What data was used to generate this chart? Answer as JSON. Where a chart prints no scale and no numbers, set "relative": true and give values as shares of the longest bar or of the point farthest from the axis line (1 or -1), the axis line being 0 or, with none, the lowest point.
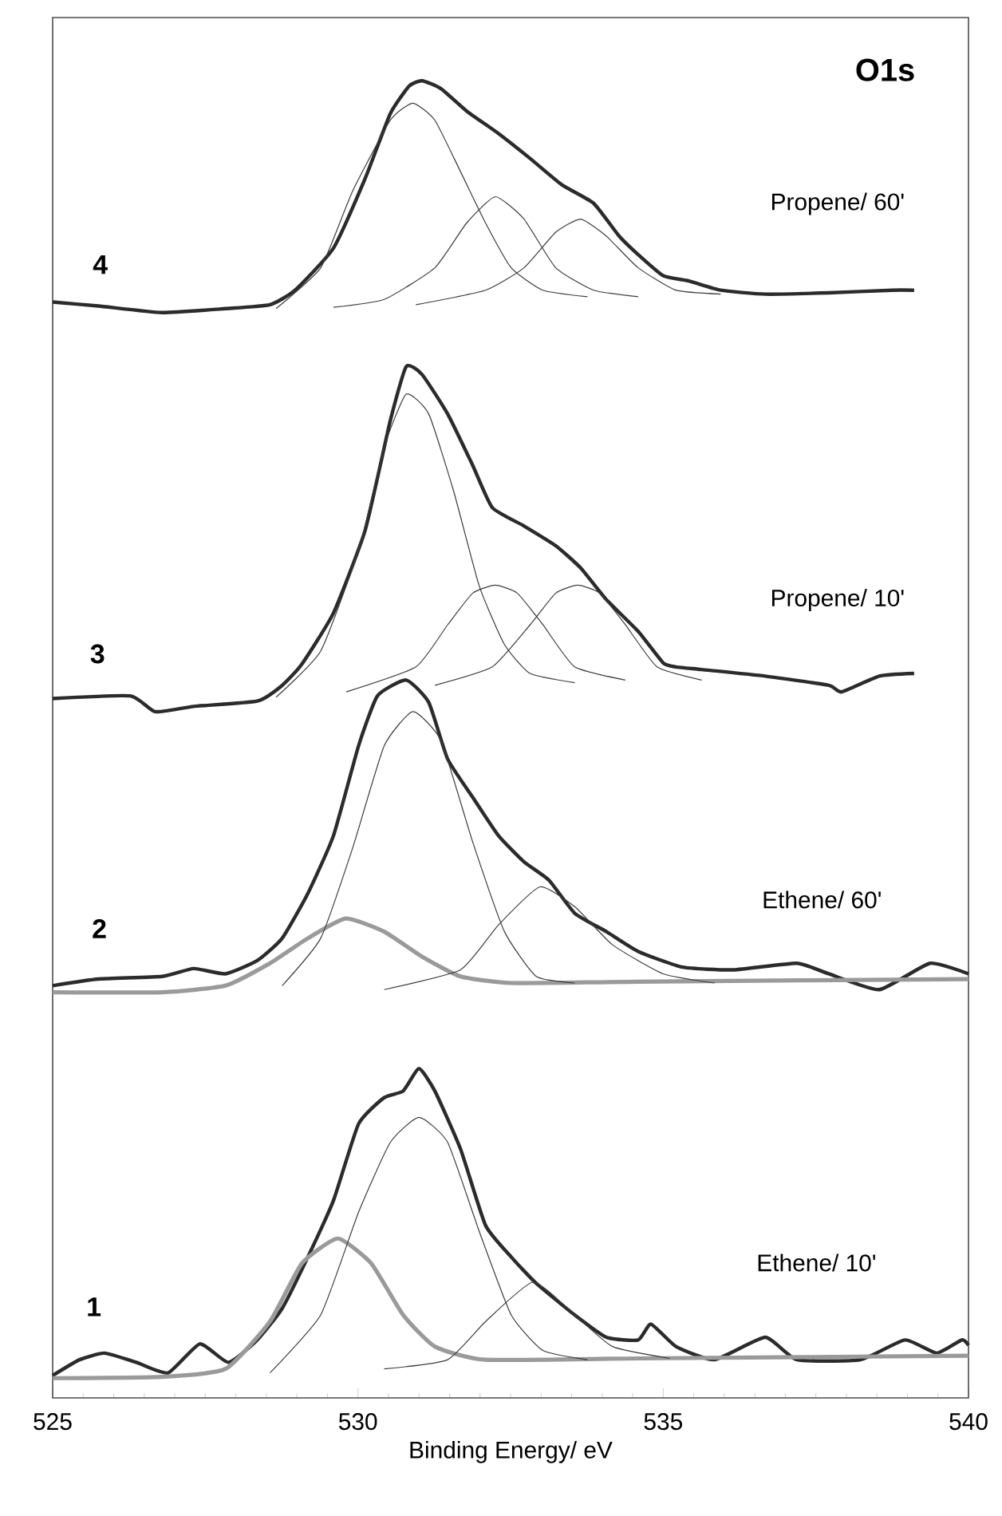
{
  "chart_data": {
    "type": "line",
    "relative": true,
    "xlabel": "Binding Energy/ eV",
    "xlim": [
      525,
      540
    ],
    "xticks": [
      525,
      530,
      535,
      540
    ],
    "marker": "none",
    "line_style": "solid",
    "series": [
      {
        "color": "#2b2b2b",
        "x": [
          525.0,
          525.75,
          526.79,
          527.83,
          528.56,
          528.97,
          529.6,
          530.12,
          530.53,
          530.84,
          531.05,
          531.36,
          531.78,
          532.3,
          532.82,
          533.34,
          533.86,
          534.28,
          534.59,
          535.0,
          535.42,
          535.94,
          536.67,
          537.71,
          538.75,
          539.11
        ],
        "values": [
          0.832,
          0.829,
          0.824,
          0.827,
          0.83,
          0.841,
          0.873,
          0.926,
          0.975,
          0.996,
          1.0,
          0.994,
          0.977,
          0.96,
          0.941,
          0.921,
          0.907,
          0.882,
          0.868,
          0.852,
          0.848,
          0.841,
          0.838,
          0.839,
          0.841,
          0.841
        ]
      },
      {
        "color": "#3c3c3c",
        "x": [
          528.66,
          529.39,
          529.91,
          530.53,
          530.9,
          531.26,
          531.68,
          532.09,
          532.51,
          533.03,
          533.76
        ],
        "values": [
          0.827,
          0.858,
          0.916,
          0.97,
          0.983,
          0.97,
          0.931,
          0.892,
          0.858,
          0.841,
          0.836
        ]
      },
      {
        "color": "#3c3c3c",
        "x": [
          529.6,
          530.43,
          531.26,
          531.78,
          532.25,
          532.72,
          533.24,
          533.86,
          534.59
        ],
        "values": [
          0.828,
          0.834,
          0.858,
          0.892,
          0.912,
          0.895,
          0.858,
          0.841,
          0.836
        ]
      },
      {
        "color": "#3c3c3c",
        "x": [
          530.95,
          532.09,
          532.72,
          533.24,
          533.65,
          534.07,
          534.59,
          535.21,
          535.94
        ],
        "values": [
          0.83,
          0.841,
          0.858,
          0.885,
          0.895,
          0.882,
          0.858,
          0.841,
          0.838
        ]
      },
      {
        "color": "#2b2b2b",
        "x": [
          525.0,
          526.27,
          526.68,
          527.31,
          528.35,
          528.76,
          529.08,
          529.6,
          530.12,
          530.53,
          530.79,
          531.05,
          531.47,
          531.88,
          532.2,
          532.72,
          533.24,
          533.65,
          534.07,
          534.59,
          535.0,
          535.21,
          535.63,
          536.67,
          537.71,
          537.92,
          538.54,
          539.11
        ],
        "values": [
          0.531,
          0.533,
          0.521,
          0.525,
          0.529,
          0.541,
          0.557,
          0.596,
          0.659,
          0.742,
          0.783,
          0.777,
          0.747,
          0.708,
          0.676,
          0.662,
          0.647,
          0.63,
          0.606,
          0.582,
          0.558,
          0.555,
          0.553,
          0.548,
          0.541,
          0.536,
          0.548,
          0.55
        ]
      },
      {
        "color": "#3c3c3c",
        "x": [
          528.66,
          529.39,
          530.02,
          530.43,
          530.79,
          531.16,
          531.57,
          531.99,
          532.4,
          532.82,
          533.55
        ],
        "values": [
          0.532,
          0.567,
          0.645,
          0.722,
          0.762,
          0.747,
          0.688,
          0.616,
          0.572,
          0.55,
          0.543
        ]
      },
      {
        "color": "#3c3c3c",
        "x": [
          529.81,
          530.95,
          531.47,
          531.88,
          532.25,
          532.61,
          533.03,
          533.55,
          534.38
        ],
        "values": [
          0.536,
          0.555,
          0.587,
          0.611,
          0.617,
          0.611,
          0.587,
          0.555,
          0.545
        ]
      },
      {
        "color": "#3c3c3c",
        "x": [
          531.26,
          532.2,
          532.82,
          533.24,
          533.6,
          533.96,
          534.38,
          534.9,
          535.63
        ],
        "values": [
          0.541,
          0.555,
          0.587,
          0.611,
          0.617,
          0.611,
          0.587,
          0.555,
          0.545
        ]
      },
      {
        "color": "#2b2b2b",
        "x": [
          525.0,
          525.75,
          526.79,
          527.31,
          527.83,
          528.35,
          528.76,
          529.18,
          529.6,
          530.01,
          530.32,
          530.79,
          531.16,
          531.47,
          531.88,
          532.3,
          532.72,
          533.13,
          533.55,
          534.07,
          534.59,
          535.32,
          536.15,
          537.19,
          537.71,
          538.54,
          539.37,
          540.0
        ],
        "values": [
          0.313,
          0.318,
          0.32,
          0.326,
          0.322,
          0.332,
          0.349,
          0.383,
          0.427,
          0.495,
          0.533,
          0.545,
          0.528,
          0.485,
          0.456,
          0.427,
          0.407,
          0.393,
          0.368,
          0.354,
          0.339,
          0.327,
          0.325,
          0.33,
          0.322,
          0.31,
          0.33,
          0.322
        ]
      },
      {
        "color": "#9a9a9a",
        "x": [
          525.0,
          526.79,
          527.83,
          528.56,
          529.18,
          529.8,
          530.43,
          531.05,
          531.68,
          532.51,
          534.59,
          540.0
        ],
        "values": [
          0.308,
          0.308,
          0.313,
          0.33,
          0.349,
          0.364,
          0.354,
          0.335,
          0.32,
          0.315,
          0.316,
          0.318
        ]
      },
      {
        "color": "#3c3c3c",
        "x": [
          528.76,
          529.39,
          529.91,
          530.43,
          530.9,
          531.36,
          531.88,
          532.4,
          532.92,
          533.55
        ],
        "values": [
          0.313,
          0.349,
          0.417,
          0.495,
          0.521,
          0.499,
          0.422,
          0.354,
          0.32,
          0.315
        ]
      },
      {
        "color": "#3c3c3c",
        "x": [
          530.43,
          531.68,
          532.3,
          532.98,
          533.55,
          534.17,
          535.0,
          535.84
        ],
        "values": [
          0.31,
          0.325,
          0.359,
          0.388,
          0.373,
          0.344,
          0.322,
          0.315
        ]
      },
      {
        "color": "#2b2b2b",
        "x": [
          525.0,
          525.44,
          525.85,
          526.37,
          526.89,
          527.41,
          527.88,
          528.35,
          528.76,
          529.18,
          529.6,
          530.01,
          530.43,
          530.74,
          531.0,
          531.26,
          531.68,
          532.09,
          532.51,
          532.92,
          533.55,
          534.07,
          534.59,
          534.8,
          535.21,
          535.84,
          536.67,
          537.19,
          538.23,
          538.96,
          539.48,
          539.89,
          540.0
        ],
        "values": [
          0.017,
          0.029,
          0.034,
          0.027,
          0.019,
          0.041,
          0.027,
          0.044,
          0.068,
          0.107,
          0.15,
          0.208,
          0.228,
          0.233,
          0.25,
          0.233,
          0.189,
          0.131,
          0.107,
          0.087,
          0.063,
          0.046,
          0.044,
          0.056,
          0.039,
          0.029,
          0.046,
          0.029,
          0.029,
          0.044,
          0.034,
          0.044,
          0.04
        ]
      },
      {
        "color": "#9a9a9a",
        "x": [
          525.0,
          526.79,
          527.83,
          528.56,
          529.08,
          529.67,
          530.22,
          530.74,
          531.26,
          532.09,
          534.59,
          540.0
        ],
        "values": [
          0.015,
          0.016,
          0.022,
          0.058,
          0.102,
          0.121,
          0.102,
          0.063,
          0.039,
          0.029,
          0.03,
          0.032
        ]
      },
      {
        "color": "#3c3c3c",
        "x": [
          528.56,
          529.39,
          530.01,
          530.53,
          531.0,
          531.47,
          531.99,
          532.51,
          533.03,
          533.76
        ],
        "values": [
          0.019,
          0.063,
          0.141,
          0.194,
          0.213,
          0.194,
          0.126,
          0.063,
          0.036,
          0.029
        ]
      },
      {
        "color": "#3c3c3c",
        "x": [
          530.43,
          531.47,
          532.09,
          532.87,
          533.55,
          534.17,
          535.11
        ],
        "values": [
          0.022,
          0.029,
          0.058,
          0.088,
          0.063,
          0.039,
          0.03
        ]
      }
    ],
    "annotations": [
      "O1s",
      "4",
      "Propene/ 60'",
      "3",
      "Propene/ 10'",
      "2",
      "Ethene/ 60'",
      "1",
      "Ethene/ 10'"
    ]
  }
}
